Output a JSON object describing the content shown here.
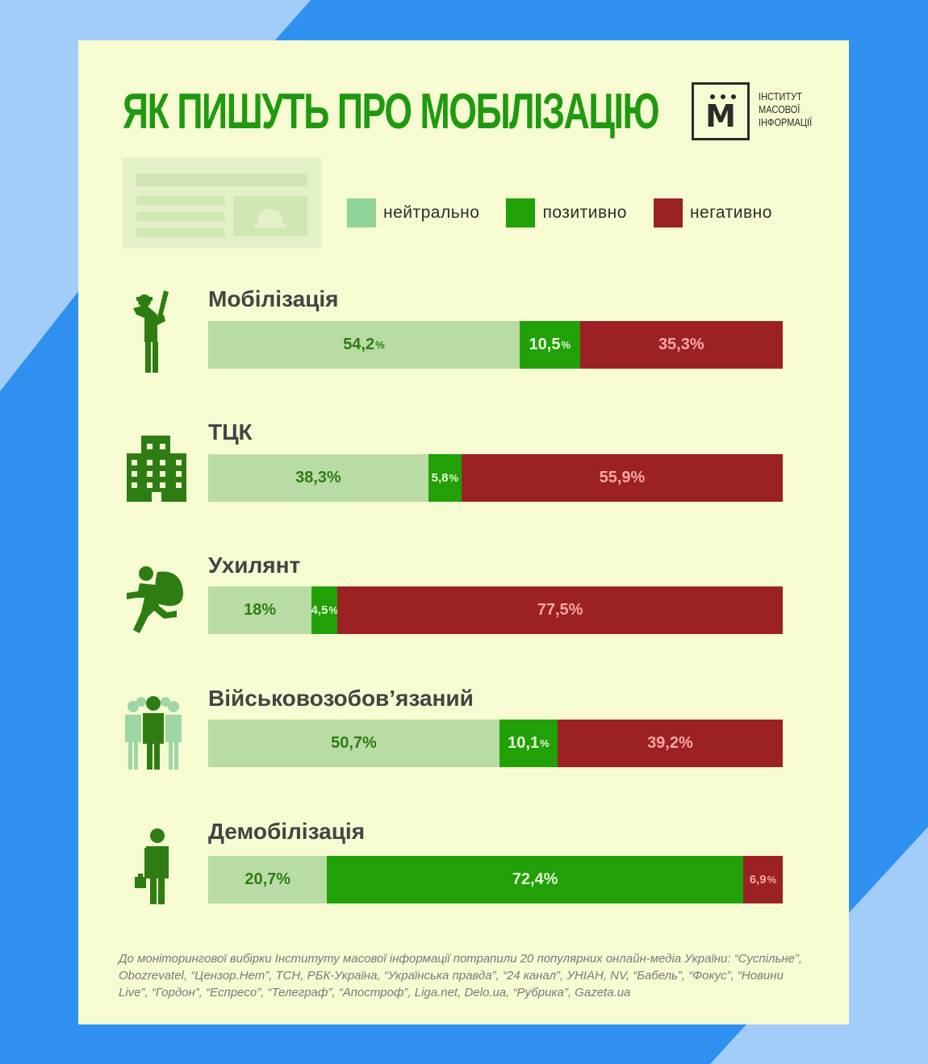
{
  "colors": {
    "page_background": "#a3cdf9",
    "background_shape": "#2f90f0",
    "card_background": "#f6fbd2",
    "title": "#1f9a10",
    "neutral": "#b9dba4",
    "positive": "#21a008",
    "negative": "#9b2125",
    "neutral_text": "#2e7d13",
    "positive_text": "#e8f7d8",
    "negative_text": "#f7a7a3",
    "icon": "#2e7d13"
  },
  "header": {
    "title": "ЯК ПИШУТЬ ПРО МОБІЛІЗАЦІЮ"
  },
  "logo": {
    "letter": "М",
    "line1": "ІНСТИТУТ",
    "line2": "МАСОВОЇ",
    "line3": "ІНФОРМАЦІЇ"
  },
  "legend": [
    {
      "label": "нейтрально",
      "color": "#8fd39a"
    },
    {
      "label": "позитивно",
      "color": "#21a008"
    },
    {
      "label": "негативно",
      "color": "#9b2125"
    }
  ],
  "chart_data": {
    "type": "bar",
    "stacked": true,
    "orientation": "horizontal",
    "unit": "%",
    "categories": [
      "Мобілізація",
      "ТЦК",
      "Ухилянт",
      "Військовозобов’язаний",
      "Демобілізація"
    ],
    "series": [
      {
        "name": "нейтрально",
        "values": [
          54.2,
          38.3,
          18,
          50.7,
          20.7
        ],
        "labels": [
          "54,2",
          "38,3%",
          "18%",
          "50,7%",
          "20,7%"
        ]
      },
      {
        "name": "позитивно",
        "values": [
          10.5,
          5.8,
          4.5,
          10.1,
          72.4
        ],
        "labels": [
          "10,5",
          "5,8",
          "4,5",
          "10,1",
          "72,4%"
        ]
      },
      {
        "name": "негативно",
        "values": [
          35.3,
          55.9,
          77.5,
          39.2,
          6.9
        ],
        "labels": [
          "35,3%",
          "55,9%",
          "77,5%",
          "39,2%",
          "6,9"
        ]
      }
    ],
    "icons": [
      "soldier-saluting-icon",
      "building-icon",
      "fleeing-man-icon",
      "group-of-people-icon",
      "man-with-bag-icon"
    ]
  },
  "footnote": "До моніторингової вибірки Інституту масової інформації потрапили 20 популярних онлайн-медіа України: “Суспільне”, Obozrevatel, “Цензор.Нет”, ТСН, РБК-Україна, “Українська правда”, “24 канал”, УНІАН, NV, “Бабель”, “Фокус”, “Новини Live”, “Гордон”, “Еспресо”, “Телеграф”, “Апостроф”, Liga.net, Delo.ua, “Рубрика”, Gazeta.ua"
}
